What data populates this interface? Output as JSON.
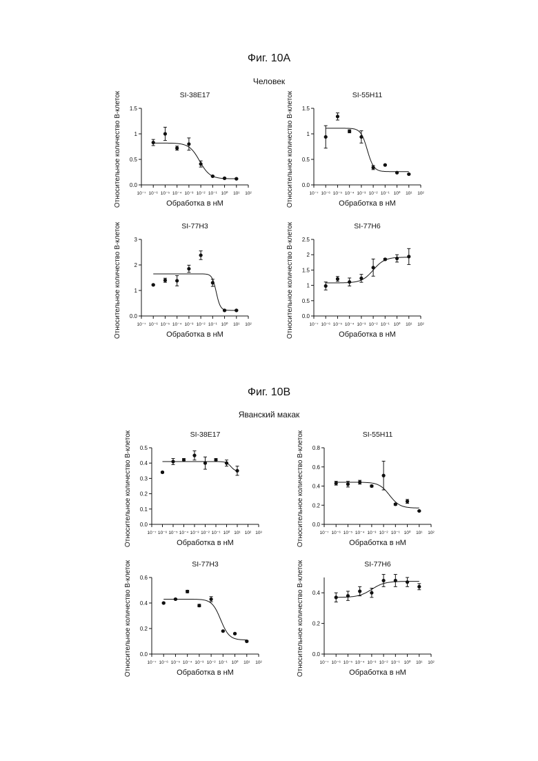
{
  "figures": [
    {
      "title": "Фиг. 10А",
      "species": "Человек"
    },
    {
      "title": "Фиг. 10В",
      "species": "Яванский макак"
    }
  ],
  "axis_text": {
    "xlabel": "Обработка в нМ",
    "ylabel": "Относительное количество В-клеток"
  },
  "chart_data": [
    {
      "type": "scatter",
      "title": "SI-38E17",
      "figure": "Фиг. 10А",
      "xscale": "log",
      "xlim": [
        1e-07,
        100
      ],
      "ylim": [
        0,
        1.5
      ],
      "yticks": [
        0,
        0.5,
        1.0,
        1.5
      ],
      "x": [
        1e-06,
        1e-05,
        0.0001,
        0.001,
        0.01,
        0.1,
        1,
        10
      ],
      "y": [
        0.83,
        1.0,
        0.72,
        0.8,
        0.41,
        0.17,
        0.13,
        0.12
      ],
      "err": [
        0.06,
        0.13,
        0.04,
        0.12,
        0.06,
        0.01,
        0.01,
        0.01
      ],
      "fit": {
        "top": 0.82,
        "bottom": 0.12,
        "logEC50": -2.1,
        "hill": -1.0
      }
    },
    {
      "type": "scatter",
      "title": "SI-55H11",
      "figure": "Фиг. 10А",
      "xscale": "log",
      "xlim": [
        1e-07,
        100
      ],
      "ylim": [
        0,
        1.5
      ],
      "yticks": [
        0,
        0.5,
        1.0,
        1.5
      ],
      "x": [
        1e-06,
        1e-05,
        0.0001,
        0.001,
        0.01,
        0.1,
        1,
        10
      ],
      "y": [
        0.94,
        1.34,
        1.05,
        0.94,
        0.34,
        0.39,
        0.24,
        0.21
      ],
      "err": [
        0.22,
        0.07,
        0.03,
        0.12,
        0.04,
        0.01,
        0.01,
        0.01
      ],
      "fit": {
        "top": 1.11,
        "bottom": 0.26,
        "logEC50": -2.5,
        "hill": -1.6
      }
    },
    {
      "type": "scatter",
      "title": "SI-77H3",
      "figure": "Фиг. 10А",
      "xscale": "log",
      "xlim": [
        1e-07,
        100
      ],
      "ylim": [
        0,
        3
      ],
      "yticks": [
        0,
        1,
        2,
        3
      ],
      "x": [
        1e-06,
        1e-05,
        0.0001,
        0.001,
        0.01,
        0.1,
        1,
        10
      ],
      "y": [
        1.22,
        1.4,
        1.38,
        1.85,
        2.38,
        1.3,
        0.22,
        0.22
      ],
      "err": [
        0.02,
        0.08,
        0.2,
        0.14,
        0.17,
        0.14,
        0.02,
        0.02
      ],
      "fit": {
        "top": 1.65,
        "bottom": 0.22,
        "logEC50": -0.7,
        "hill": -2.5
      }
    },
    {
      "type": "scatter",
      "title": "SI-77H6",
      "figure": "Фиг. 10А",
      "xscale": "log",
      "xlim": [
        1e-07,
        100
      ],
      "ylim": [
        0,
        2.5
      ],
      "yticks": [
        0,
        0.5,
        1.0,
        1.5,
        2.0,
        2.5
      ],
      "x": [
        1e-06,
        1e-05,
        0.0001,
        0.001,
        0.01,
        0.1,
        1,
        10
      ],
      "y": [
        0.98,
        1.21,
        1.11,
        1.23,
        1.58,
        1.85,
        1.88,
        1.94
      ],
      "err": [
        0.13,
        0.08,
        0.13,
        0.13,
        0.28,
        0.03,
        0.12,
        0.26
      ],
      "fit": {
        "top": 1.92,
        "bottom": 1.08,
        "logEC50": -2.0,
        "hill": 0.9
      }
    },
    {
      "type": "scatter",
      "title": "SI-38E17",
      "figure": "Фиг. 10В",
      "xscale": "log",
      "xlim": [
        1e-07,
        1000
      ],
      "ylim": [
        0,
        0.5
      ],
      "yticks": [
        0,
        0.1,
        0.2,
        0.3,
        0.4,
        0.5
      ],
      "x": [
        1e-06,
        1e-05,
        0.0001,
        0.001,
        0.01,
        0.1,
        1,
        10
      ],
      "y": [
        0.34,
        0.41,
        0.42,
        0.45,
        0.4,
        0.42,
        0.4,
        0.35
      ],
      "err": [
        0.005,
        0.02,
        0.01,
        0.03,
        0.04,
        0.01,
        0.02,
        0.03
      ],
      "fit": {
        "top": 0.41,
        "bottom": 0.345,
        "logEC50": 0.4,
        "hill": -2.0
      }
    },
    {
      "type": "scatter",
      "title": "SI-55H11",
      "figure": "Фиг. 10В",
      "xscale": "log",
      "xlim": [
        1e-07,
        100
      ],
      "ylim": [
        0,
        0.8
      ],
      "yticks": [
        0,
        0.2,
        0.4,
        0.6,
        0.8
      ],
      "x": [
        1e-06,
        1e-05,
        0.0001,
        0.001,
        0.01,
        0.1,
        1,
        10
      ],
      "y": [
        0.43,
        0.42,
        0.44,
        0.4,
        0.51,
        0.21,
        0.24,
        0.14
      ],
      "err": [
        0.02,
        0.03,
        0.02,
        0.01,
        0.15,
        0.01,
        0.02,
        0.005
      ],
      "fit": {
        "top": 0.44,
        "bottom": 0.17,
        "logEC50": -1.5,
        "hill": -1.0
      }
    },
    {
      "type": "scatter",
      "title": "SI-77H3",
      "figure": "Фиг. 10В",
      "xscale": "log",
      "xlim": [
        1e-07,
        100
      ],
      "ylim": [
        0,
        0.6
      ],
      "yticks": [
        0,
        0.2,
        0.4,
        0.6
      ],
      "x": [
        1e-06,
        1e-05,
        0.0001,
        0.001,
        0.01,
        0.1,
        1,
        10
      ],
      "y": [
        0.4,
        0.43,
        0.49,
        0.38,
        0.43,
        0.18,
        0.16,
        0.1
      ],
      "err": [
        0.005,
        0.005,
        0.01,
        0.01,
        0.02,
        0.005,
        0.005,
        0.005
      ],
      "fit": {
        "top": 0.43,
        "bottom": 0.11,
        "logEC50": -1.2,
        "hill": -1.2
      }
    },
    {
      "type": "scatter",
      "title": "SI-77H6",
      "figure": "Фиг. 10В",
      "xscale": "log",
      "xlim": [
        1e-07,
        100
      ],
      "ylim": [
        0,
        0.5
      ],
      "yticks": [
        0,
        0.2,
        0.4
      ],
      "x": [
        1e-06,
        1e-05,
        0.0001,
        0.001,
        0.01,
        0.1,
        1,
        10
      ],
      "y": [
        0.37,
        0.38,
        0.41,
        0.4,
        0.48,
        0.48,
        0.47,
        0.44
      ],
      "err": [
        0.03,
        0.03,
        0.03,
        0.03,
        0.04,
        0.04,
        0.03,
        0.02
      ],
      "fit": {
        "top": 0.475,
        "bottom": 0.37,
        "logEC50": -3.0,
        "hill": 0.8
      }
    }
  ]
}
